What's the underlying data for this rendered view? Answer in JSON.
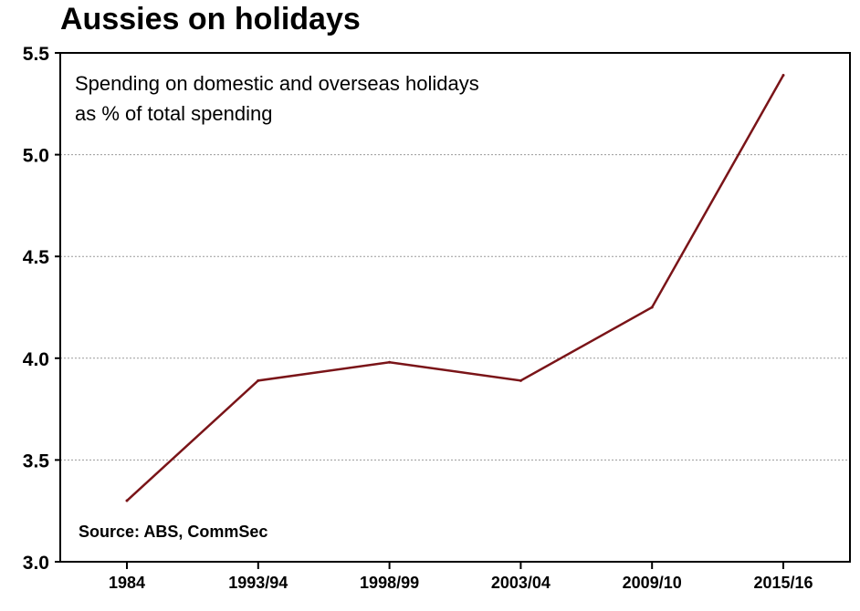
{
  "chart_data": {
    "type": "line",
    "title": "Aussies on holidays",
    "subtitle_lines": [
      "Spending on domestic and overseas holidays",
      "as % of total spending"
    ],
    "source": "Source: ABS, CommSec",
    "categories": [
      "1984",
      "1993/94",
      "1998/99",
      "2003/04",
      "2009/10",
      "2015/16"
    ],
    "series": [
      {
        "values": [
          3.3,
          3.89,
          3.98,
          3.89,
          4.25,
          5.39
        ]
      }
    ],
    "ylim": [
      3.0,
      5.5
    ],
    "yticks": [
      "3.0",
      "3.5",
      "4.0",
      "4.5",
      "5.0",
      "5.5"
    ],
    "grid": true,
    "line_color": "#7a1418",
    "grid_color": "#9a9a9a"
  }
}
